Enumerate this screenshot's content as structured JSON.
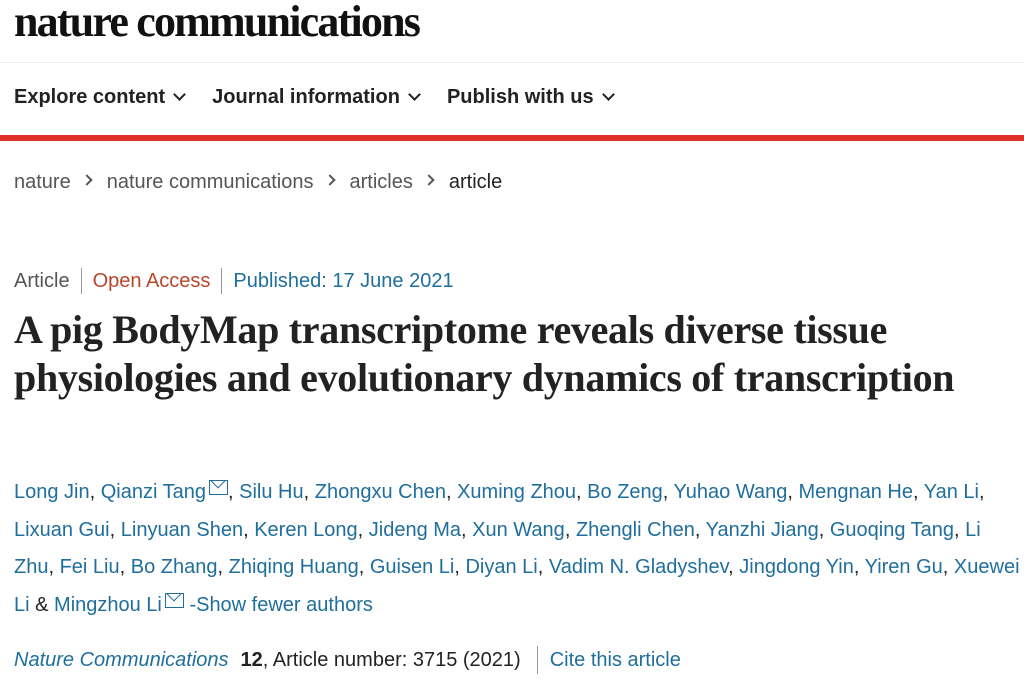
{
  "site": {
    "logo": "nature communications"
  },
  "nav": {
    "items": [
      {
        "label": "Explore content"
      },
      {
        "label": "Journal information"
      },
      {
        "label": "Publish with us"
      }
    ]
  },
  "breadcrumb": [
    "nature",
    "nature communications",
    "articles",
    "article"
  ],
  "article": {
    "type": "Article",
    "access": "Open Access",
    "published": "Published: 17 June 2021",
    "title": "A pig BodyMap transcriptome reveals diverse tissue physiologies and evolutionary dynamics of transcription",
    "authors": [
      {
        "name": "Long Jin"
      },
      {
        "name": "Qianzi Tang",
        "mail": true
      },
      {
        "name": "Silu Hu"
      },
      {
        "name": "Zhongxu Chen"
      },
      {
        "name": "Xuming Zhou"
      },
      {
        "name": "Bo Zeng"
      },
      {
        "name": "Yuhao Wang"
      },
      {
        "name": "Mengnan He"
      },
      {
        "name": "Yan Li"
      },
      {
        "name": "Lixuan Gui"
      },
      {
        "name": "Linyuan Shen"
      },
      {
        "name": "Keren Long"
      },
      {
        "name": "Jideng Ma"
      },
      {
        "name": "Xun Wang"
      },
      {
        "name": "Zhengli Chen"
      },
      {
        "name": "Yanzhi Jiang"
      },
      {
        "name": "Guoqing Tang"
      },
      {
        "name": "Li Zhu"
      },
      {
        "name": "Fei Liu"
      },
      {
        "name": "Bo Zhang"
      },
      {
        "name": "Zhiqing Huang"
      },
      {
        "name": "Guisen Li"
      },
      {
        "name": "Diyan Li"
      },
      {
        "name": "Vadim N. Gladyshev"
      },
      {
        "name": "Jingdong Yin"
      },
      {
        "name": "Yiren Gu"
      },
      {
        "name": "Xuewei Li"
      },
      {
        "name": "Mingzhou Li",
        "mail": true
      }
    ],
    "show_fewer": "-Show fewer authors",
    "journal": "Nature Communications",
    "volume": "12",
    "article_number": ", Article number: 3715 (2021)",
    "cite_label": "Cite this article"
  },
  "colors": {
    "accent_red": "#e0302a",
    "link": "#1f6e9c",
    "open_access": "#b7472a"
  }
}
